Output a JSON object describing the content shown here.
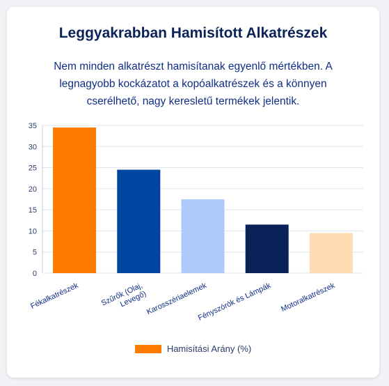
{
  "header": {
    "title": "Leggyakrabban Hamisított Alkatrészek",
    "subtitle": "Nem minden alkatrészt hamisítanak egyenlő mértékben. A legnagyobb kockázatot a kopóalkatrészek és a könnyen cserélhető, nagy keresletű termékek jelentik."
  },
  "chart_data": {
    "type": "bar",
    "categories": [
      [
        "Fékalkatrészek"
      ],
      [
        "Szűrők (Olaj,",
        "Levegő)"
      ],
      [
        "Karosszériaelemek"
      ],
      [
        "Fényszórók és Lámpák"
      ],
      [
        "Motoralkatrészek"
      ]
    ],
    "series": [
      {
        "name": "Hamisítási Arány (%)",
        "values": [
          34.5,
          24.5,
          17.5,
          11.5,
          9.5
        ],
        "colors": [
          "#ff7b00",
          "#0046a0",
          "#aecbfa",
          "#0b2258",
          "#ffdcb3"
        ]
      }
    ],
    "yticks": [
      "0",
      "5",
      "10",
      "15",
      "20",
      "25",
      "30",
      "35"
    ],
    "ylim": [
      0,
      35
    ],
    "grid": true,
    "legend_position": "bottom",
    "legend_color": "#ff7b00"
  }
}
